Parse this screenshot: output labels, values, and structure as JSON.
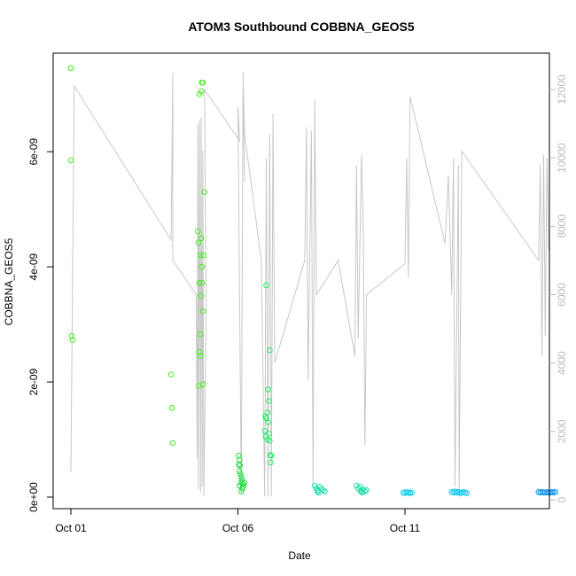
{
  "chart_data": {
    "type": "scatter",
    "title": "ATOM3 Southbound COBBNA_GEOS5",
    "xlabel": "Date",
    "ylabel": "COBBNA_GEOS5",
    "y2label": "",
    "x_unit": "days",
    "x_range": [
      0,
      14.3
    ],
    "ylim": [
      0,
      7.55e-09
    ],
    "y2lim": [
      -100,
      12600
    ],
    "x_ticks": [
      {
        "x": 0,
        "label": "Oct 01"
      },
      {
        "x": 5,
        "label": "Oct 06"
      },
      {
        "x": 10,
        "label": "Oct 11"
      }
    ],
    "y_ticks": [
      {
        "y": 0,
        "label": "0e+00"
      },
      {
        "y": 2e-09,
        "label": "2e-09"
      },
      {
        "y": 4e-09,
        "label": "4e-09"
      },
      {
        "y": 6e-09,
        "label": "6e-09"
      }
    ],
    "y2_ticks": [
      {
        "y": 0,
        "label": "0"
      },
      {
        "y": 2000,
        "label": "2000"
      },
      {
        "y": 4000,
        "label": "4000"
      },
      {
        "y": 6000,
        "label": "6000"
      },
      {
        "y": 8000,
        "label": "8000"
      },
      {
        "y": 10000,
        "label": "10000"
      },
      {
        "y": 12000,
        "label": "12000"
      }
    ],
    "grid": false,
    "colors": {
      "altitude_line": "#c8c8c8",
      "points_early": "#44ee22",
      "points_mid": "#22dd44",
      "points_late": "#22ee66",
      "points_teal": "#22ddaa",
      "points_cyan": "#11ccee",
      "points_blue": "#1199ee"
    },
    "series": [
      {
        "color_key": "points_early",
        "points": [
          [
            0.0,
            7.45e-09
          ],
          [
            0.0,
            5.85e-09
          ],
          [
            0.02,
            2.8e-09
          ],
          [
            0.05,
            2.73e-09
          ],
          [
            3.0,
            2.13e-09
          ],
          [
            3.02,
            1.55e-09
          ],
          [
            3.05,
            9.4e-10
          ],
          [
            3.8,
            4.62e-09
          ],
          [
            3.82,
            4.42e-09
          ],
          [
            3.84,
            3.72e-09
          ],
          [
            3.85,
            2.52e-09
          ],
          [
            3.87,
            2.45e-09
          ],
          [
            3.83,
            1.93e-09
          ],
          [
            3.85,
            7e-09
          ],
          [
            3.9,
            7.05e-09
          ],
          [
            3.92,
            7.2e-09
          ],
          [
            3.95,
            7.2e-09
          ],
          [
            3.88,
            4.2e-09
          ],
          [
            3.9,
            4.5e-09
          ],
          [
            3.92,
            4e-09
          ],
          [
            3.93,
            3.72e-09
          ],
          [
            3.9,
            3.5e-09
          ],
          [
            3.95,
            3.23e-09
          ],
          [
            3.88,
            2.83e-09
          ],
          [
            3.95,
            1.96e-09
          ],
          [
            3.97,
            4.2e-09
          ],
          [
            4.0,
            5.3e-09
          ]
        ]
      },
      {
        "color_key": "points_mid",
        "points": [
          [
            5.02,
            7.2e-10
          ],
          [
            5.05,
            6.5e-10
          ],
          [
            5.03,
            5.7e-10
          ],
          [
            5.06,
            5.5e-10
          ],
          [
            5.04,
            4.5e-10
          ],
          [
            5.08,
            4e-10
          ],
          [
            5.1,
            3.5e-10
          ],
          [
            5.12,
            3e-10
          ],
          [
            5.1,
            2.5e-10
          ],
          [
            5.15,
            2.2e-10
          ],
          [
            5.05,
            2e-10
          ],
          [
            5.13,
            1.5e-10
          ],
          [
            5.1,
            1e-10
          ],
          [
            5.2,
            2.5e-10
          ],
          [
            5.16,
            1.8e-10
          ]
        ]
      },
      {
        "color_key": "points_late",
        "points": [
          [
            5.85,
            3.68e-09
          ],
          [
            5.95,
            2.55e-09
          ],
          [
            5.9,
            1.87e-09
          ],
          [
            5.93,
            1.67e-09
          ],
          [
            5.82,
            1.4e-09
          ],
          [
            5.88,
            1.47e-09
          ],
          [
            5.85,
            1.37e-09
          ],
          [
            5.9,
            1.3e-09
          ],
          [
            5.8,
            1.15e-09
          ],
          [
            5.93,
            1.1e-09
          ],
          [
            5.83,
            1.05e-09
          ],
          [
            5.88,
            1e-09
          ],
          [
            5.95,
            9.8e-10
          ],
          [
            5.97,
            7.3e-10
          ],
          [
            6.0,
            7.2e-10
          ],
          [
            5.98,
            6e-10
          ]
        ]
      },
      {
        "color_key": "points_teal",
        "points": [
          [
            7.3,
            2e-10
          ],
          [
            7.35,
            1.5e-10
          ],
          [
            7.4,
            1.2e-10
          ],
          [
            7.45,
            1.8e-10
          ],
          [
            7.5,
            1.4e-10
          ],
          [
            7.38,
            1e-10
          ],
          [
            7.42,
            8e-11
          ],
          [
            7.55,
            1.2e-10
          ],
          [
            7.6,
            1e-10
          ],
          [
            8.55,
            2e-10
          ],
          [
            8.6,
            1.5e-10
          ],
          [
            8.65,
            1.8e-10
          ],
          [
            8.7,
            1.2e-10
          ],
          [
            8.75,
            1.4e-10
          ],
          [
            8.68,
            1e-10
          ],
          [
            8.8,
            1e-10
          ],
          [
            8.85,
            1.2e-10
          ],
          [
            8.72,
            8e-11
          ]
        ]
      },
      {
        "color_key": "points_cyan",
        "points": [
          [
            9.95,
            8e-11
          ],
          [
            10.0,
            7e-11
          ],
          [
            10.05,
            9e-11
          ],
          [
            10.1,
            8e-11
          ],
          [
            10.15,
            7e-11
          ],
          [
            10.2,
            8e-11
          ],
          [
            11.4,
            9e-11
          ],
          [
            11.45,
            8e-11
          ],
          [
            11.5,
            1e-10
          ],
          [
            11.55,
            8e-11
          ],
          [
            11.6,
            9e-11
          ],
          [
            11.65,
            7e-11
          ],
          [
            11.7,
            8e-11
          ],
          [
            11.75,
            9e-11
          ],
          [
            11.8,
            8e-11
          ],
          [
            11.85,
            7e-11
          ]
        ]
      },
      {
        "color_key": "points_blue",
        "points": [
          [
            14.0,
            9e-11
          ],
          [
            14.05,
            8e-11
          ],
          [
            14.1,
            9e-11
          ],
          [
            14.15,
            8e-11
          ],
          [
            14.2,
            8e-11
          ],
          [
            14.25,
            9e-11
          ],
          [
            14.3,
            8e-11
          ],
          [
            14.35,
            8e-11
          ],
          [
            14.4,
            9e-11
          ],
          [
            14.45,
            8e-11
          ],
          [
            14.5,
            9e-11
          ]
        ]
      }
    ],
    "altitude_line": [
      [
        0,
        800
      ],
      [
        0.1,
        12100
      ],
      [
        3.0,
        7600
      ],
      [
        3.05,
        12500
      ],
      [
        3.05,
        7000
      ],
      [
        3.75,
        6000
      ],
      [
        3.78,
        1200
      ],
      [
        3.8,
        11000
      ],
      [
        3.82,
        300
      ],
      [
        3.85,
        11100
      ],
      [
        3.88,
        200
      ],
      [
        3.9,
        11200
      ],
      [
        3.93,
        400
      ],
      [
        3.95,
        10200
      ],
      [
        3.98,
        100
      ],
      [
        4.05,
        5500
      ],
      [
        4.0,
        12000
      ],
      [
        5.05,
        10500
      ],
      [
        5.0,
        11500
      ],
      [
        5.1,
        200
      ],
      [
        5.15,
        12000
      ],
      [
        5.2,
        9300
      ],
      [
        5.15,
        12500
      ],
      [
        5.2,
        10700
      ],
      [
        5.7,
        7000
      ],
      [
        5.8,
        100
      ],
      [
        5.85,
        10000
      ],
      [
        5.9,
        100
      ],
      [
        5.95,
        10700
      ],
      [
        6.0,
        100
      ],
      [
        6.05,
        11300
      ],
      [
        6.1,
        4000
      ],
      [
        7.0,
        7000
      ],
      [
        7.05,
        10900
      ],
      [
        7.1,
        3500
      ],
      [
        7.2,
        10800
      ],
      [
        7.25,
        400
      ],
      [
        7.3,
        11700
      ],
      [
        7.35,
        6000
      ],
      [
        8.0,
        7000
      ],
      [
        8.5,
        4200
      ],
      [
        8.55,
        9800
      ],
      [
        8.6,
        4700
      ],
      [
        8.7,
        10100
      ],
      [
        8.75,
        8000
      ],
      [
        8.8,
        1600
      ],
      [
        8.85,
        6000
      ],
      [
        10.0,
        6900
      ],
      [
        10.05,
        10000
      ],
      [
        10.1,
        6500
      ],
      [
        10.15,
        11800
      ],
      [
        11.2,
        7500
      ],
      [
        11.3,
        9500
      ],
      [
        11.4,
        6000
      ],
      [
        11.45,
        10000
      ],
      [
        11.5,
        400
      ],
      [
        11.6,
        9800
      ],
      [
        11.62,
        200
      ],
      [
        11.7,
        10200
      ],
      [
        14.0,
        7000
      ],
      [
        14.05,
        9800
      ],
      [
        14.1,
        4200
      ],
      [
        14.15,
        10100
      ],
      [
        14.2,
        4800
      ],
      [
        14.25,
        10000
      ],
      [
        14.3,
        7300
      ]
    ]
  }
}
